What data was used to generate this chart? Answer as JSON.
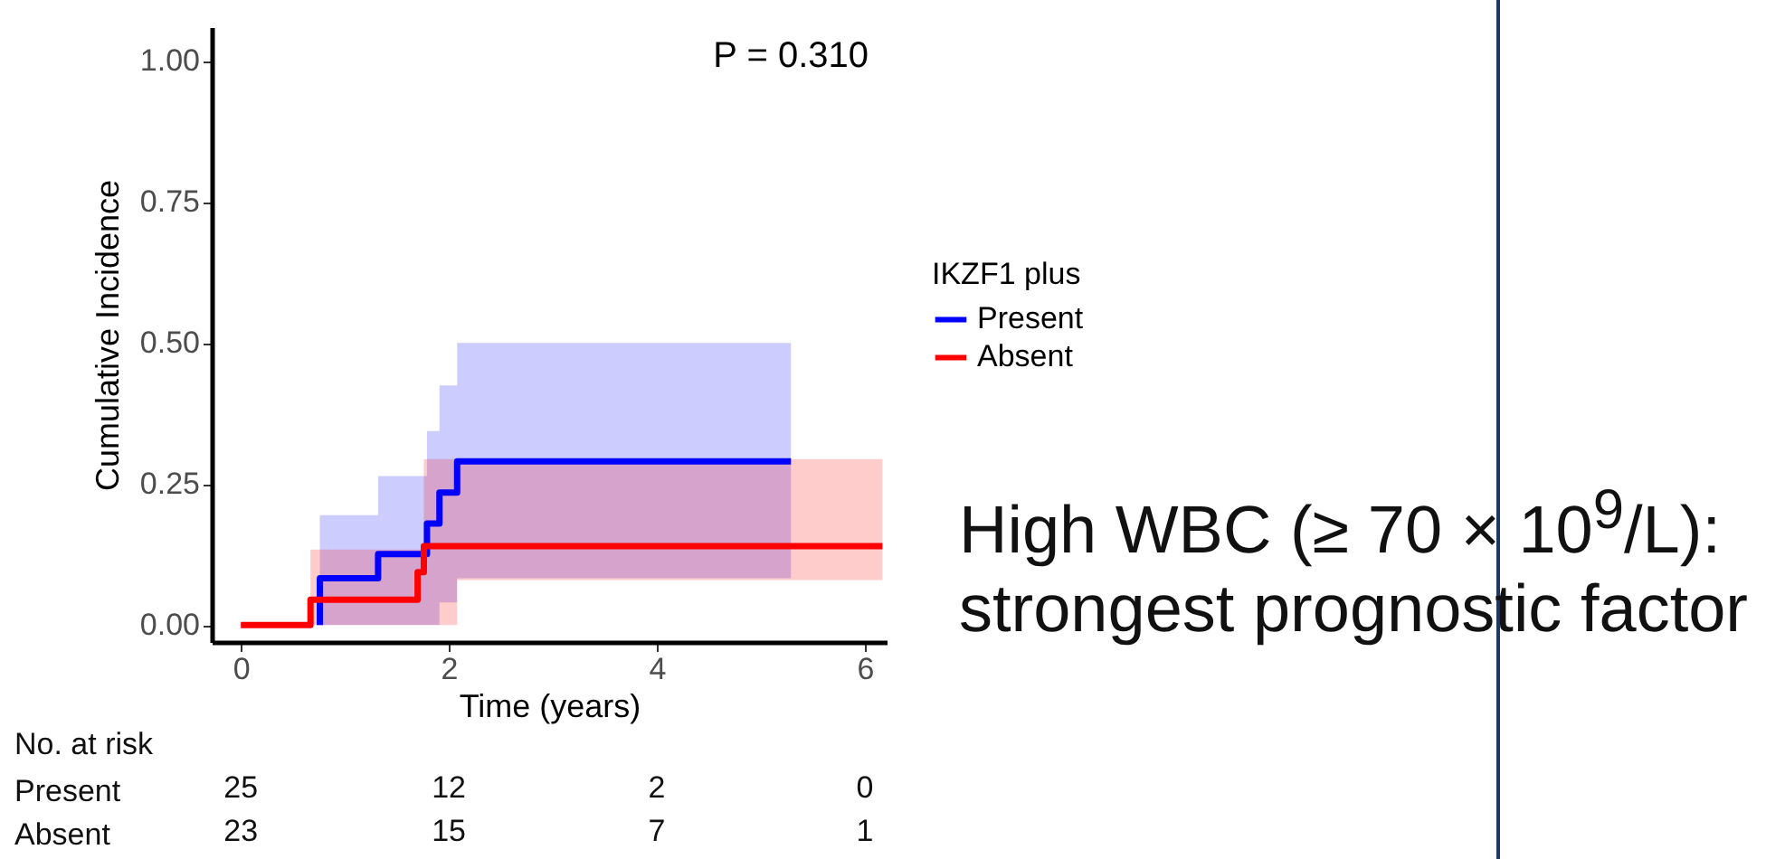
{
  "chart_data": {
    "type": "step",
    "xlabel": "Time (years)",
    "ylabel": "Cumulative Incidence",
    "legend_title": "IKZF1 plus",
    "series": [
      {
        "name": "Present",
        "color": "#0000ff",
        "x": [
          0.76,
          0.76,
          1.32,
          1.79,
          1.91,
          2.08,
          5.29
        ],
        "values": [
          0,
          0.083,
          0.126,
          0.18,
          0.235,
          0.29,
          0.29
        ],
        "lower": [
          0,
          0,
          0,
          0,
          0.04,
          0.083,
          0.083
        ],
        "upper": [
          0,
          0.195,
          0.264,
          0.344,
          0.425,
          0.5,
          0.5
        ]
      },
      {
        "name": "Absent",
        "color": "#ff0000",
        "x": [
          0,
          0.67,
          1.7,
          1.76,
          2.08,
          6.17
        ],
        "values": [
          0,
          0.045,
          0.094,
          0.14,
          0.14,
          0.14
        ],
        "lower": [
          0,
          0,
          0,
          0,
          0.08,
          0.08
        ],
        "upper": [
          0,
          0.134,
          0.134,
          0.294,
          0.294,
          0.294
        ]
      }
    ],
    "xlim": [
      -0.28,
      6.21
    ],
    "xticks": [
      0,
      2,
      4,
      6
    ],
    "ylim": [
      -0.03,
      1.06
    ],
    "yticks": [
      {
        "value": 0,
        "label": "0.00"
      },
      {
        "value": 0.25,
        "label": "0.25"
      },
      {
        "value": 0.5,
        "label": "0.50"
      },
      {
        "value": 0.75,
        "label": "0.75"
      },
      {
        "value": 1,
        "label": "1.00"
      }
    ],
    "grid": false,
    "legend": "right",
    "annotations": [
      "P = 0.310",
      "High WBC (≥ 70 × 10$^{9}$/L): strongest prognostic factor",
      "No. at risk",
      "Present",
      "25",
      "12",
      "2",
      "0",
      "Absent",
      "23",
      "15",
      "7",
      "1"
    ]
  }
}
